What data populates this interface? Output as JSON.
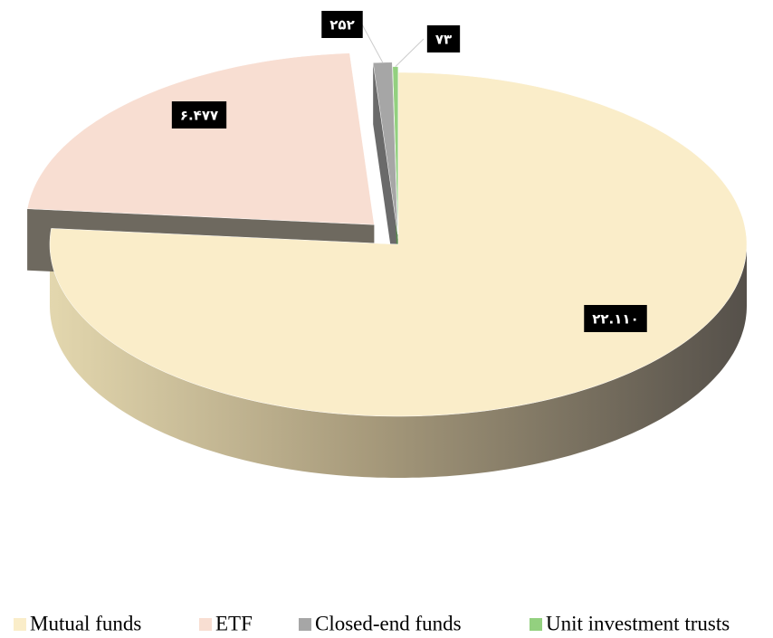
{
  "chart_data": {
    "type": "pie",
    "categories": [
      "Mutual funds",
      "ETF",
      "Closed-end funds",
      "Unit investment trusts"
    ],
    "values": [
      22110,
      6477,
      252,
      73
    ],
    "value_labels": [
      "۲۲.۱۱۰",
      "۶.۴۷۷",
      "۲۵۲",
      "۷۳"
    ],
    "colors": [
      "#faedc9",
      "#f8ded2",
      "#a6a6a6",
      "#93d07f"
    ],
    "legend": "bottom"
  }
}
